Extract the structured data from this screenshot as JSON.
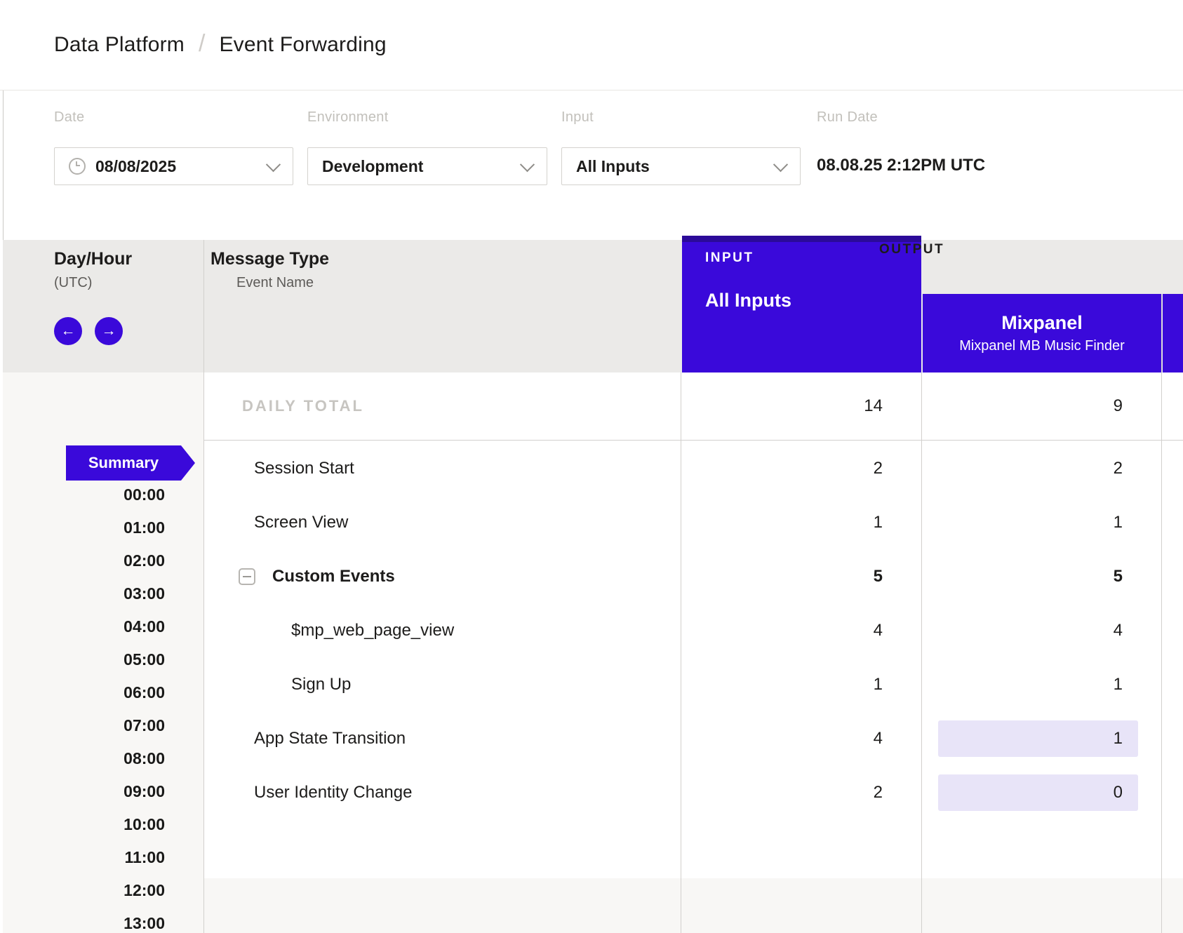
{
  "breadcrumb": {
    "section": "Data Platform",
    "separator": "/",
    "page": "Event Forwarding"
  },
  "filters": {
    "date": {
      "label": "Date",
      "value": "08/08/2025"
    },
    "environment": {
      "label": "Environment",
      "value": "Development"
    },
    "input": {
      "label": "Input",
      "value": "All Inputs"
    },
    "run_date": {
      "label": "Run Date",
      "value": "08.08.25 2:12PM UTC"
    }
  },
  "table": {
    "day_hour": {
      "title": "Day/Hour",
      "subtitle": "(UTC)"
    },
    "message_type": {
      "title": "Message Type",
      "subtitle": "Event Name"
    },
    "nav": {
      "prev_icon": "←",
      "next_icon": "→"
    },
    "input_col": {
      "label": "INPUT",
      "value": "All Inputs"
    },
    "output_col": {
      "label": "OUTPUT",
      "name": "Mixpanel",
      "subtitle": "Mixpanel MB Music Finder"
    },
    "daily_total": {
      "label": "DAILY TOTAL",
      "input": "14",
      "output": "9"
    },
    "rows": [
      {
        "name": "Session Start",
        "level": "plain",
        "input": "2",
        "output": "2",
        "bold": false,
        "highlight_output": false
      },
      {
        "name": "Screen View",
        "level": "plain",
        "input": "1",
        "output": "1",
        "bold": false,
        "highlight_output": false
      },
      {
        "name": "Custom Events",
        "level": "group",
        "input": "5",
        "output": "5",
        "bold": true,
        "highlight_output": false
      },
      {
        "name": "$mp_web_page_view",
        "level": "child",
        "input": "4",
        "output": "4",
        "bold": false,
        "highlight_output": false
      },
      {
        "name": "Sign Up",
        "level": "child",
        "input": "1",
        "output": "1",
        "bold": false,
        "highlight_output": false
      },
      {
        "name": "App State Transition",
        "level": "plain",
        "input": "4",
        "output": "1",
        "bold": false,
        "highlight_output": true
      },
      {
        "name": "User Identity Change",
        "level": "plain",
        "input": "2",
        "output": "0",
        "bold": false,
        "highlight_output": true
      }
    ],
    "summary_label": "Summary",
    "hours": [
      "00:00",
      "01:00",
      "02:00",
      "03:00",
      "04:00",
      "05:00",
      "06:00",
      "07:00",
      "08:00",
      "09:00",
      "10:00",
      "11:00",
      "12:00",
      "13:00"
    ]
  },
  "colors": {
    "brand_purple": "#3a09da",
    "brand_purple_dark": "#2b0a99",
    "highlight_lavender": "#e8e4f8",
    "header_gray": "#ebeae8",
    "panel_gray": "#f8f7f5"
  }
}
